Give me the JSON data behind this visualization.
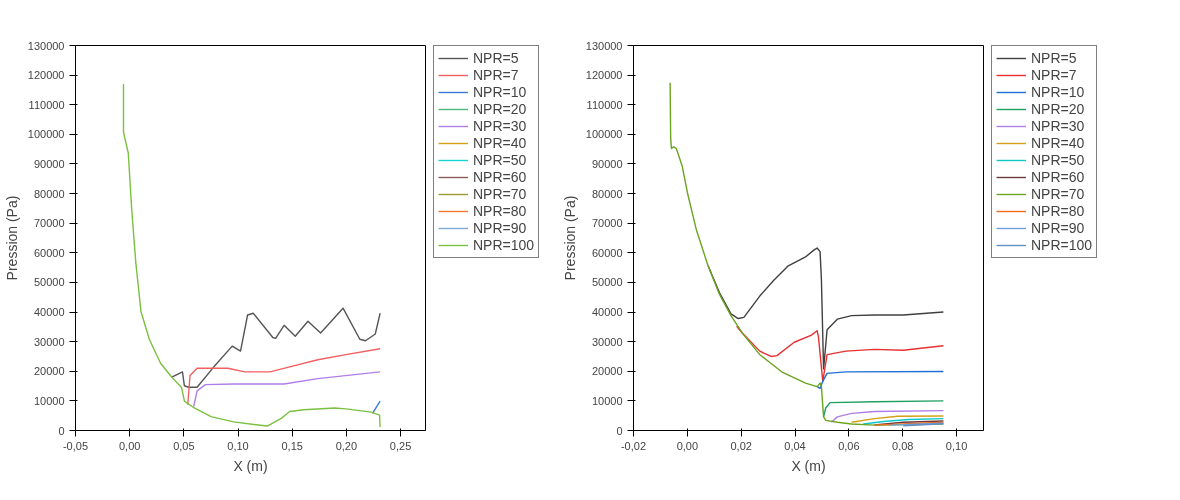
{
  "chart_data": [
    {
      "type": "line",
      "xlabel": "X (m)",
      "ylabel": "Pression (Pa)",
      "legend": "right",
      "grid": false,
      "line_style": "solid",
      "marker": "none",
      "xlim": [
        -0.05,
        0.273
      ],
      "ylim": [
        0,
        130000
      ],
      "xticks": [
        {
          "value": -0.05,
          "label": "-0,05"
        },
        {
          "value": 0.0,
          "label": "0,00"
        },
        {
          "value": 0.05,
          "label": "0,05"
        },
        {
          "value": 0.1,
          "label": "0,10"
        },
        {
          "value": 0.15,
          "label": "0,15"
        },
        {
          "value": 0.2,
          "label": "0,20"
        },
        {
          "value": 0.25,
          "label": "0,25"
        }
      ],
      "yticks": [
        0,
        10000,
        20000,
        30000,
        40000,
        50000,
        60000,
        70000,
        80000,
        90000,
        100000,
        110000,
        120000,
        130000
      ],
      "series": [
        {
          "name": "NPR=5",
          "color": "#555555",
          "x": [
            0.0389,
            0.0487,
            0.0505,
            0.0544,
            0.0622,
            0.0777,
            0.0946,
            0.1023,
            0.1088,
            0.114,
            0.1321,
            0.1347,
            0.1425,
            0.1528,
            0.1645,
            0.1762,
            0.1969,
            0.2124,
            0.2176,
            0.2267,
            0.2311
          ],
          "values": [
            18000,
            19800,
            15100,
            14600,
            14600,
            21500,
            28500,
            26800,
            39000,
            39600,
            31400,
            31100,
            35500,
            31800,
            36900,
            32900,
            41300,
            30800,
            30300,
            32600,
            39600
          ]
        },
        {
          "name": "NPR=7",
          "color": "#f06060",
          "x": [
            0.0536,
            0.0557,
            0.0622,
            0.0907,
            0.1062,
            0.1295,
            0.1477,
            0.1736,
            0.1995,
            0.2311
          ],
          "values": [
            8700,
            18600,
            21000,
            21000,
            19800,
            19800,
            21500,
            23900,
            25600,
            27600
          ]
        },
        {
          "name": "NPR=10",
          "color": "#3a7bd5",
          "x": [
            0.2241,
            0.2311
          ],
          "values": [
            5800,
            9900
          ]
        },
        {
          "name": "NPR=20",
          "color": "#4cb87a"
        },
        {
          "name": "NPR=30",
          "color": "#b07ee8",
          "x": [
            0.0591,
            0.0622,
            0.0699,
            0.0959,
            0.1425,
            0.1736,
            0.2311
          ],
          "values": [
            8100,
            13400,
            15500,
            15700,
            15700,
            17500,
            19800
          ]
        },
        {
          "name": "NPR=40",
          "color": "#d4a017"
        },
        {
          "name": "NPR=50",
          "color": "#17d4d4"
        },
        {
          "name": "NPR=60",
          "color": "#8b5a5a"
        },
        {
          "name": "NPR=70",
          "color": "#9a9a30"
        },
        {
          "name": "NPR=80",
          "color": "#f07830"
        },
        {
          "name": "NPR=90",
          "color": "#7fa8d8"
        },
        {
          "name": "NPR=100",
          "color": "#7cc040",
          "x": [
            -0.0057,
            -0.0057,
            -0.0013,
            0.0018,
            0.0057,
            0.0104,
            0.0181,
            0.0285,
            0.0389,
            0.0479,
            0.0505,
            0.0596,
            0.0751,
            0.0959,
            0.1269,
            0.1399,
            0.1477,
            0.1606,
            0.1891,
            0.1995,
            0.2228,
            0.2306,
            0.2311
          ],
          "values": [
            117000,
            100700,
            93700,
            75000,
            56500,
            40200,
            30800,
            22700,
            18000,
            14500,
            9900,
            7600,
            4700,
            2900,
            1500,
            4100,
            6400,
            7000,
            7600,
            7300,
            6200,
            5200,
            1200
          ]
        }
      ]
    },
    {
      "type": "line",
      "xlabel": "X (m)",
      "ylabel": "Pression (Pa)",
      "legend": "right",
      "grid": false,
      "line_style": "solid",
      "marker": "none",
      "xlim": [
        -0.02,
        0.11
      ],
      "ylim": [
        0,
        130000
      ],
      "xticks": [
        {
          "value": -0.02,
          "label": "-0,02"
        },
        {
          "value": 0.0,
          "label": "0,00"
        },
        {
          "value": 0.02,
          "label": "0,02"
        },
        {
          "value": 0.04,
          "label": "0,04"
        },
        {
          "value": 0.06,
          "label": "0,06"
        },
        {
          "value": 0.08,
          "label": "0,08"
        },
        {
          "value": 0.1,
          "label": "0,10"
        }
      ],
      "yticks": [
        0,
        10000,
        20000,
        30000,
        40000,
        50000,
        60000,
        70000,
        80000,
        90000,
        100000,
        110000,
        120000,
        130000
      ],
      "series": [
        {
          "name": "NPR=5",
          "color": "#404040",
          "x": [
            0.0077,
            0.0119,
            0.0162,
            0.0189,
            0.021,
            0.0269,
            0.0322,
            0.0375,
            0.0439,
            0.0471,
            0.0482,
            0.0493,
            0.0498,
            0.0506,
            0.0512,
            0.0519,
            0.0557,
            0.061,
            0.0695,
            0.0802,
            0.0951
          ],
          "values": [
            55600,
            46600,
            39400,
            37800,
            38200,
            45400,
            50800,
            55600,
            58600,
            61000,
            61600,
            60400,
            50800,
            20800,
            26800,
            34000,
            37600,
            38800,
            39000,
            39000,
            40000
          ]
        },
        {
          "name": "NPR=7",
          "color": "#e83030",
          "x": [
            0.0183,
            0.0205,
            0.0269,
            0.0311,
            0.0333,
            0.0397,
            0.0461,
            0.0482,
            0.0487,
            0.0503,
            0.0519,
            0.0589,
            0.0695,
            0.0802,
            0.0951
          ],
          "values": [
            35200,
            32800,
            26800,
            25000,
            25300,
            29800,
            32200,
            33700,
            31600,
            16600,
            25600,
            26800,
            27400,
            27100,
            28600
          ]
        },
        {
          "name": "NPR=10",
          "color": "#1f6fd8",
          "x": [
            0.0482,
            0.0493,
            0.0503,
            0.0519,
            0.0589,
            0.0951
          ],
          "values": [
            14800,
            14200,
            16600,
            19300,
            19800,
            19900
          ]
        },
        {
          "name": "NPR=20",
          "color": "#20a060",
          "x": [
            0.0506,
            0.0514,
            0.053,
            0.0695,
            0.0951
          ],
          "values": [
            4600,
            7600,
            9400,
            9700,
            10000
          ]
        },
        {
          "name": "NPR=30",
          "color": "#b07ee8",
          "x": [
            0.0535,
            0.0557,
            0.061,
            0.0695,
            0.0951
          ],
          "values": [
            2800,
            4600,
            5800,
            6400,
            6700
          ]
        },
        {
          "name": "NPR=40",
          "color": "#d4a017",
          "x": [
            0.061,
            0.0695,
            0.0781,
            0.0951
          ],
          "values": [
            2800,
            4000,
            4800,
            4900
          ]
        },
        {
          "name": "NPR=50",
          "color": "#10c8c8",
          "x": [
            0.0653,
            0.0738,
            0.0823,
            0.0951
          ],
          "values": [
            2200,
            3100,
            3700,
            4000
          ]
        },
        {
          "name": "NPR=60",
          "color": "#6a3a3a",
          "x": [
            0.0695,
            0.0802,
            0.0951
          ],
          "values": [
            1900,
            2800,
            3200
          ]
        },
        {
          "name": "NPR=70",
          "color": "#6aa51f",
          "x": [
            -0.0064,
            -0.0062,
            -0.0059,
            -0.0051,
            -0.0041,
            -0.0019,
            0.0002,
            0.0034,
            0.0077,
            0.0119,
            0.0162,
            0.0205,
            0.0269,
            0.0354,
            0.0439,
            0.0482,
            0.0493,
            0.0498,
            0.0506,
            0.0514,
            0.0557,
            0.061,
            0.0695,
            0.0951
          ],
          "values": [
            117400,
            98800,
            95200,
            95800,
            95200,
            89200,
            79600,
            67600,
            55600,
            46000,
            38800,
            32800,
            25600,
            19600,
            16000,
            14800,
            16000,
            14800,
            4600,
            3400,
            2800,
            2200,
            1800,
            2200
          ]
        },
        {
          "name": "NPR=80",
          "color": "#f06a1a",
          "x": [
            0.0695,
            0.0951
          ],
          "values": [
            1800,
            2800
          ]
        },
        {
          "name": "NPR=90",
          "color": "#6fa0d8",
          "x": [
            0.0749,
            0.0951
          ],
          "values": [
            1800,
            2500
          ]
        },
        {
          "name": "NPR=100",
          "color": "#6090c8",
          "x": [
            0.0802,
            0.0951
          ],
          "values": [
            1600,
            2300
          ]
        }
      ]
    }
  ]
}
